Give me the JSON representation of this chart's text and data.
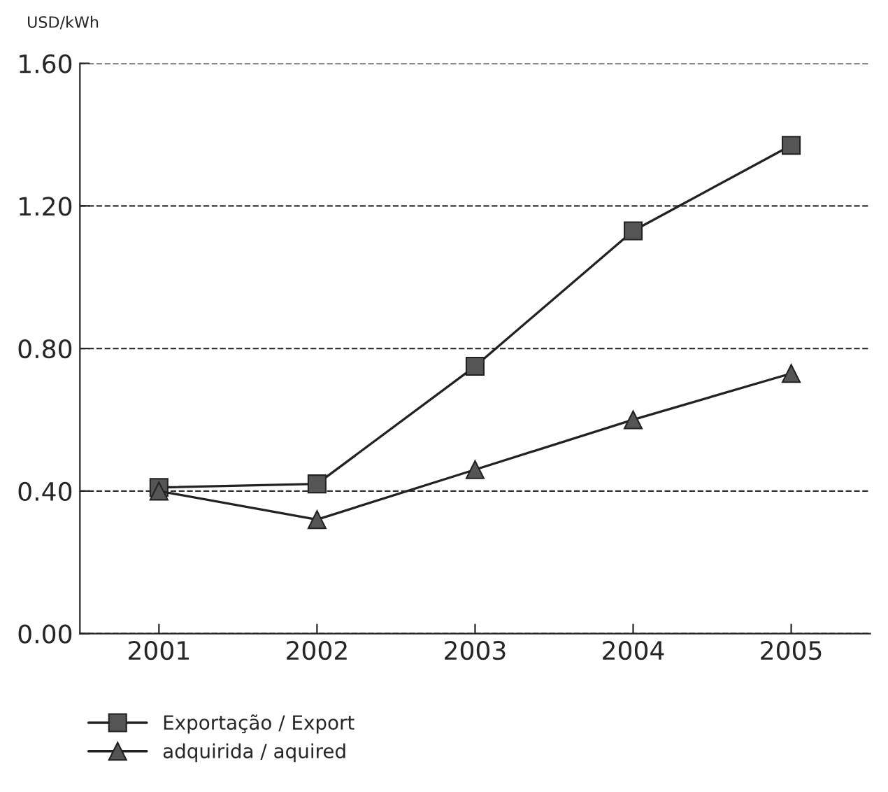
{
  "chart_data": {
    "type": "line",
    "ylabel": "USD/kWh",
    "categories": [
      "2001",
      "2002",
      "2003",
      "2004",
      "2005"
    ],
    "series": [
      {
        "name": "Exportação / Export",
        "color": "#555555",
        "marker": "square",
        "values": [
          0.41,
          0.42,
          0.75,
          1.13,
          1.37
        ]
      },
      {
        "name": "adquirida / aquired",
        "color": "#555555",
        "marker": "triangle",
        "values": [
          0.4,
          0.32,
          0.46,
          0.6,
          0.73
        ]
      }
    ],
    "ylim": [
      0,
      1.6
    ],
    "yticks": [
      {
        "value": 0,
        "label": "0.00"
      },
      {
        "value": 0.4,
        "label": "0.40"
      },
      {
        "value": 0.8,
        "label": "0.80"
      },
      {
        "value": 1.2,
        "label": "1.20"
      },
      {
        "value": 1.6,
        "label": "1.60"
      }
    ],
    "grid": "y",
    "legend": "bottom",
    "line_style": "solid"
  }
}
